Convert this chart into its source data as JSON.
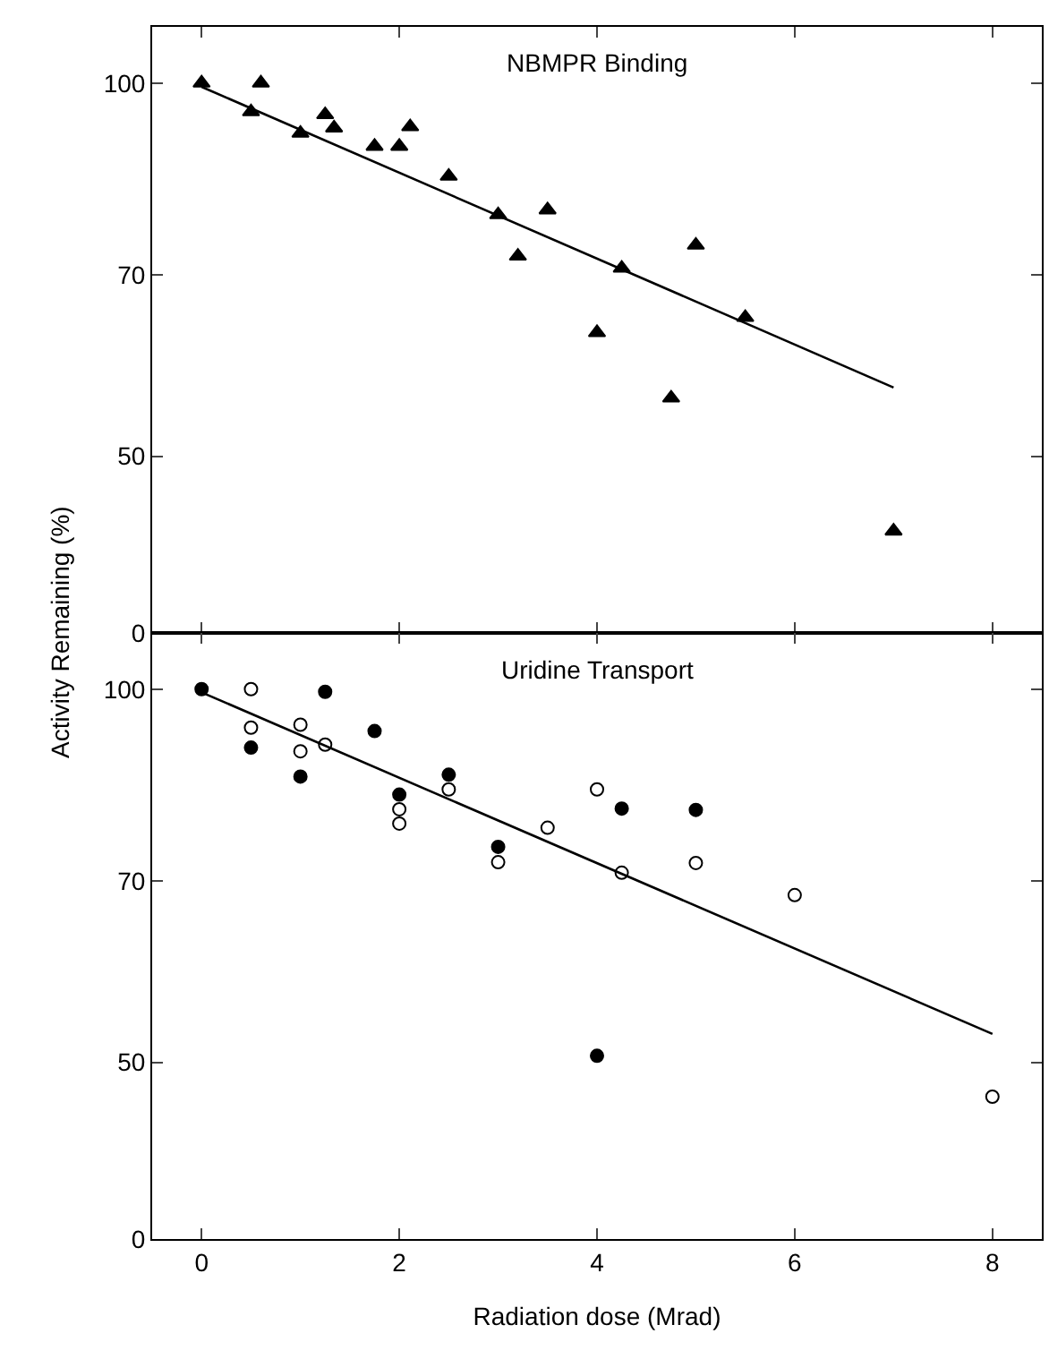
{
  "chart_data": [
    {
      "type": "scatter",
      "title": "NBMPR Binding",
      "ylabel": "Activity Remaining (%)",
      "log": "y",
      "xlim": [
        -0.5,
        8.5
      ],
      "xticks": [
        0,
        2,
        4,
        6,
        8
      ],
      "ylim": [
        0,
        111
      ],
      "yticks": [
        0,
        50,
        70,
        100
      ],
      "tick_labels": "y",
      "series": [
        {
          "marker": "triangle",
          "color": "#000000",
          "x": [
            0,
            0.5,
            0.6,
            1.0,
            1.25,
            1.34,
            1.75,
            2.0,
            2.11,
            2.5,
            3.0,
            3.2,
            3.5,
            4.0,
            4.25,
            4.75,
            5.0,
            5.5,
            7.0
          ],
          "values": [
            100,
            94.8,
            100,
            91.1,
            94.3,
            92.0,
            88.9,
            88.9,
            92.2,
            84.1,
            78.3,
            72.5,
            79.0,
            62.9,
            70.9,
            55.7,
            74.0,
            64.7,
            43.5
          ]
        },
        {
          "type": "line",
          "marker": "none",
          "color": "#000000",
          "x": [
            0,
            7
          ],
          "values": [
            99.3,
            56.8
          ]
        }
      ]
    },
    {
      "type": "scatter",
      "title": "Uridine Transport",
      "xlabel": "Radiation dose (Mrad)",
      "log": "y",
      "xlim": [
        -0.5,
        8.5
      ],
      "xticks": [
        0,
        2,
        4,
        6,
        8
      ],
      "ylim": [
        0,
        111
      ],
      "yticks": [
        0,
        50,
        70,
        100
      ],
      "series": [
        {
          "marker": "circle",
          "color": "#000000",
          "x": [
            0,
            0.5,
            1.0,
            1.25,
            1.75,
            2.0,
            2.5,
            3.0,
            4.0,
            4.25,
            5.0
          ],
          "values": [
            100,
            89.7,
            85.0,
            99.5,
            92.5,
            82.2,
            85.3,
            74.6,
            50.6,
            80.1,
            79.9
          ]
        },
        {
          "marker": "circle",
          "color": "#ffffff",
          "x": [
            0.5,
            0.5,
            1.0,
            1.0,
            1.25,
            2.0,
            2.0,
            2.5,
            3.0,
            3.5,
            4.0,
            4.25,
            5.0,
            6.0,
            8.0
          ],
          "values": [
            100,
            93.1,
            93.6,
            89.1,
            90.2,
            80.0,
            77.9,
            83.0,
            72.5,
            77.3,
            83.0,
            71.1,
            72.4,
            68.2,
            46.9
          ]
        },
        {
          "type": "line",
          "marker": "none",
          "color": "#000000",
          "x": [
            0,
            8
          ],
          "values": [
            99.4,
            52.7
          ]
        }
      ]
    }
  ]
}
